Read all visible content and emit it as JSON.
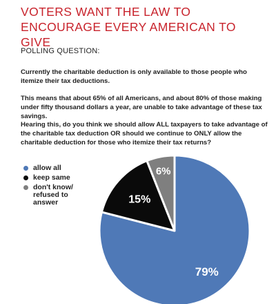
{
  "title": "VOTERS WANT THE LAW TO ENCOURAGE EVERY AMERICAN TO GIVE",
  "polling_label": "POLLING QUESTION:",
  "paragraphs": [
    "Currently the charitable deduction is only available to those people who itemize their tax deductions.",
    "This means that about 65% of all Americans, and about 80% of those making under fifty thousand dollars a year, are unable to take advantage of these tax savings.",
    "Hearing this, do you think we should allow ALL taxpayers to take advantage of the charitable tax deduction OR should we continue to ONLY allow the charitable deduction for those who itemize their tax returns?"
  ],
  "chart_data": {
    "type": "pie",
    "title": "",
    "legend_position": "left",
    "slices": [
      {
        "label": "allow all",
        "value": 79,
        "display": "79%",
        "color": "#4f79b7",
        "text_color": "#ffffff"
      },
      {
        "label": "keep same",
        "value": 15,
        "display": "15%",
        "color": "#0a0a0a",
        "text_color": "#ffffff"
      },
      {
        "label": "don't know/\nrefused to\nanswer",
        "value": 6,
        "display": "6%",
        "color": "#7f7f7f",
        "text_color": "#ffffff"
      }
    ]
  }
}
